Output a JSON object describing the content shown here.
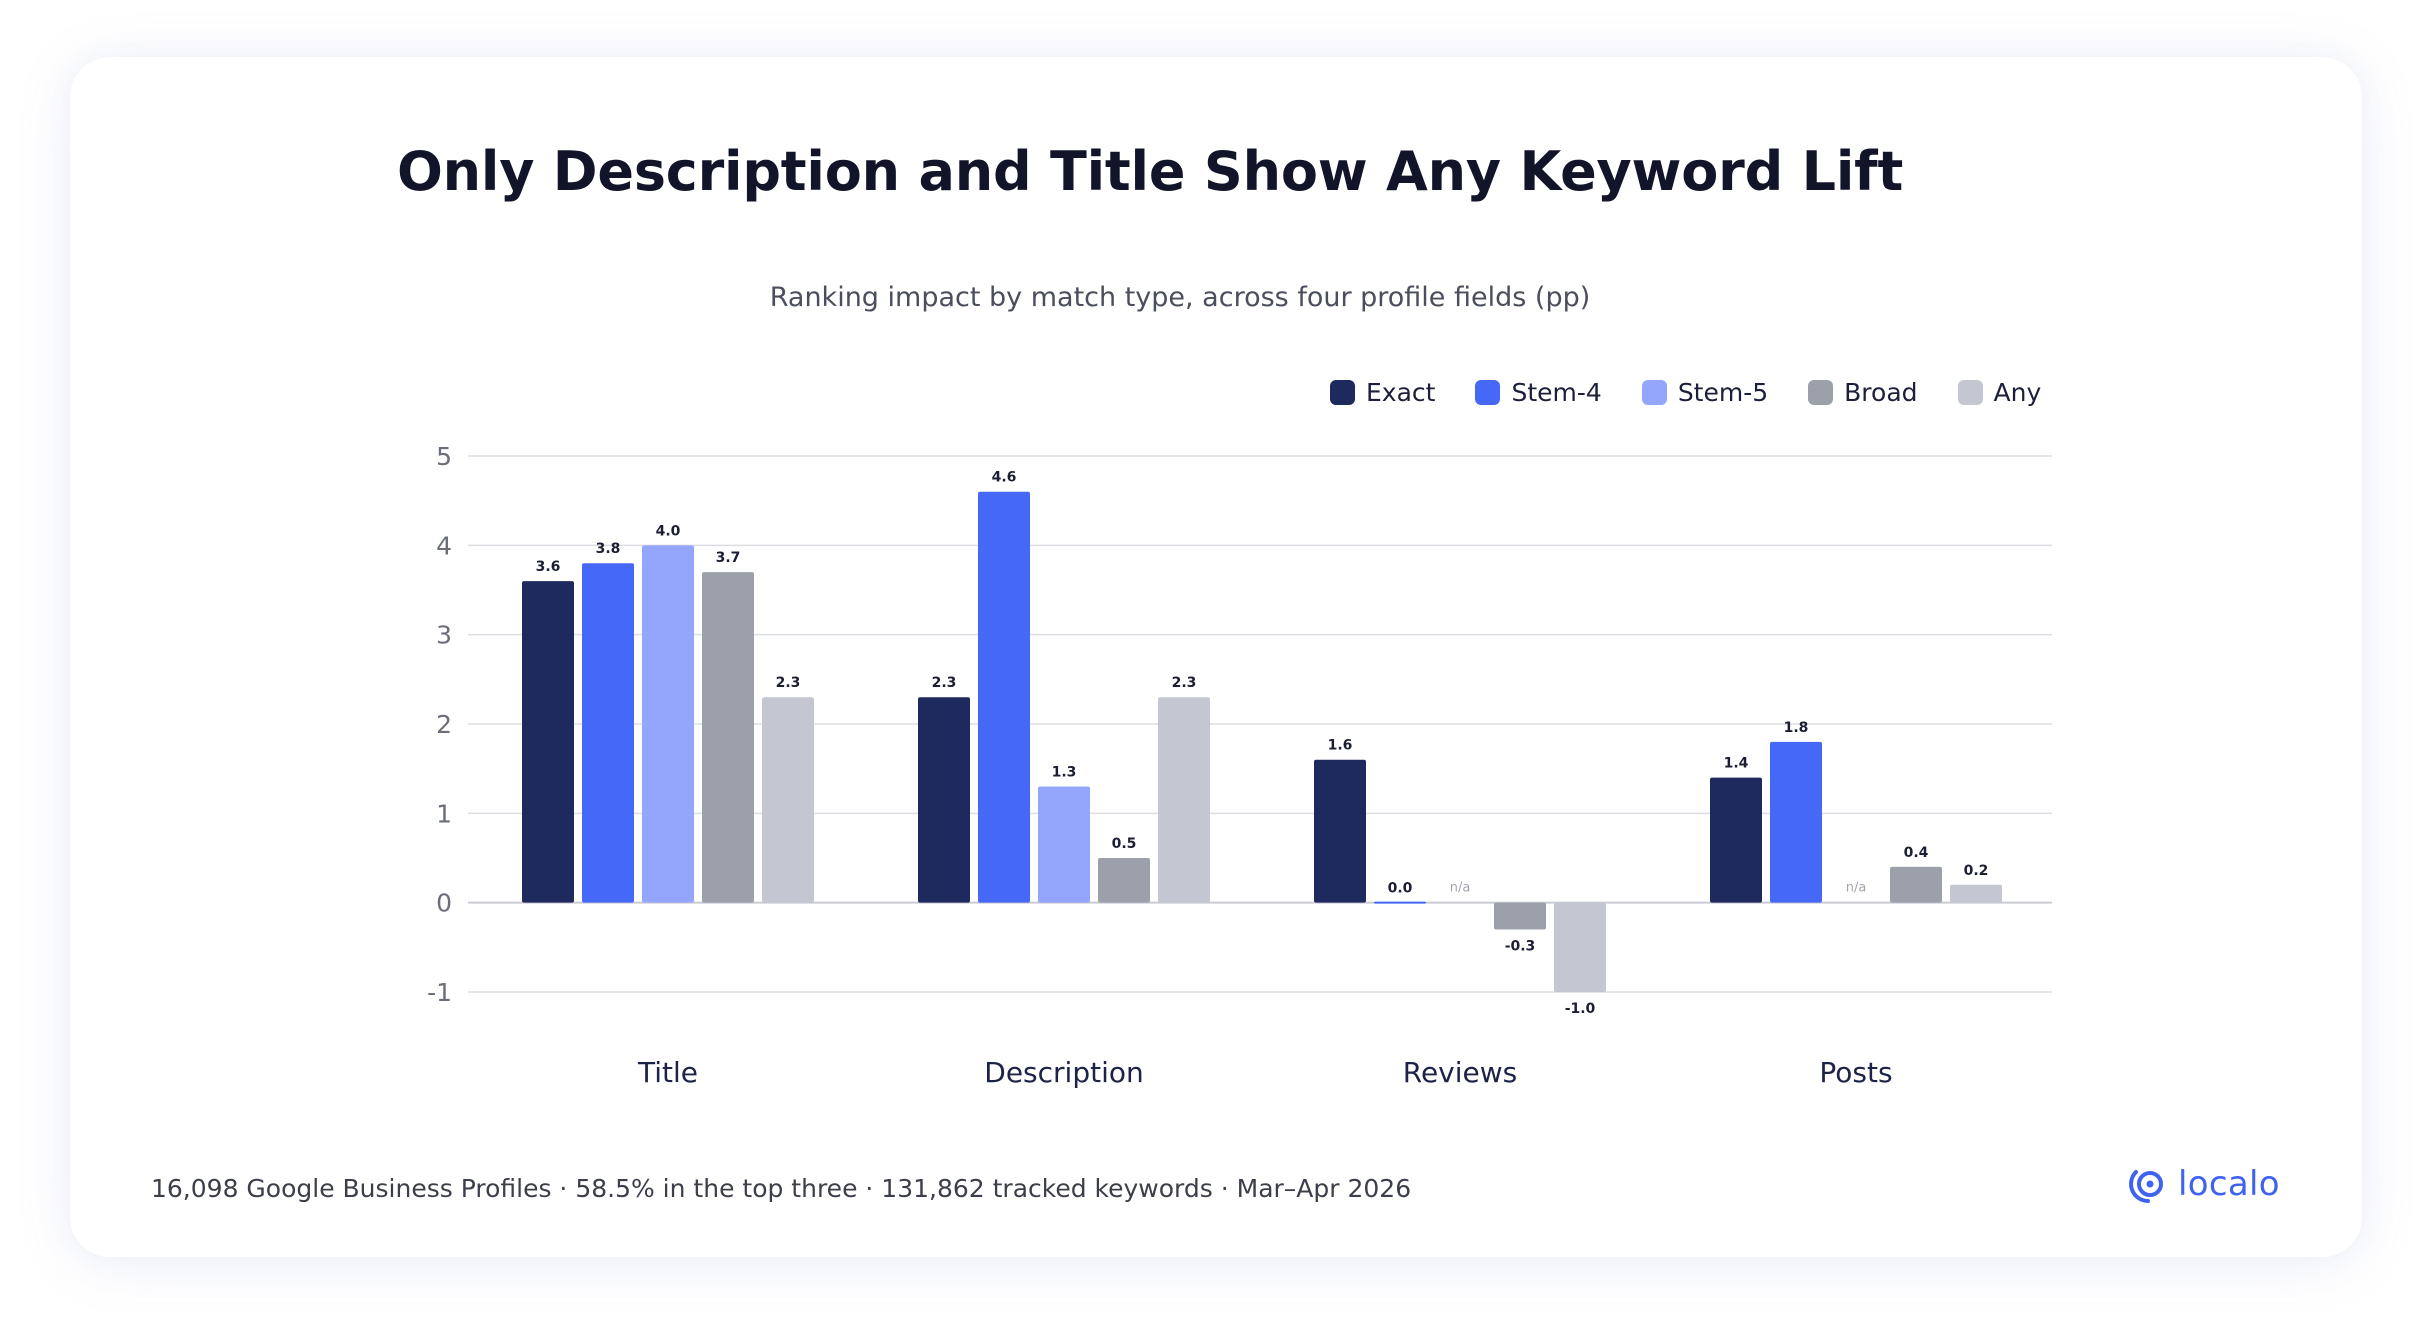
{
  "chart_data": {
    "type": "bar",
    "title": "Only Description and Title Show Any Keyword Lift",
    "subtitle": "Ranking impact by match type, across four profile fields (pp)",
    "categories": [
      "Title",
      "Description",
      "Reviews",
      "Posts"
    ],
    "series": [
      {
        "name": "Exact",
        "color": "#1e2a5e",
        "values": [
          3.6,
          2.3,
          1.6,
          1.4
        ],
        "labels": [
          "3.6",
          "2.3",
          "1.6",
          "1.4"
        ]
      },
      {
        "name": "Stem-4",
        "color": "#4569f6",
        "values": [
          3.8,
          4.6,
          0.0,
          1.8
        ],
        "labels": [
          "3.8",
          "4.6",
          "0.0",
          "1.8"
        ]
      },
      {
        "name": "Stem-5",
        "color": "#93a6fb",
        "values": [
          4.0,
          1.3,
          null,
          null
        ],
        "labels": [
          "4.0",
          "1.3",
          "n/a",
          "n/a"
        ]
      },
      {
        "name": "Broad",
        "color": "#9ca0ab",
        "values": [
          3.7,
          0.5,
          -0.3,
          0.4
        ],
        "labels": [
          "3.7",
          "0.5",
          "-0.3",
          "0.4"
        ]
      },
      {
        "name": "Any",
        "color": "#c4c7d1",
        "values": [
          2.3,
          2.3,
          -1.0,
          0.2
        ],
        "labels": [
          "2.3",
          "2.3",
          "-1.0",
          "0.2"
        ]
      }
    ],
    "yticks": [
      "5",
      "4",
      "3",
      "2",
      "1",
      "0",
      "-1"
    ],
    "ylim": [
      -1,
      5
    ],
    "grid": true,
    "legend_position": "top-right"
  },
  "footer": {
    "text": "16,098 Google Business Profiles · 58.5% in the top three · 131,862 tracked keywords · Mar–Apr 2026"
  },
  "brand": {
    "name": "localo",
    "color": "#3f63f0"
  },
  "colors": {
    "title": "#12142a",
    "axis_text": "#6b6e78",
    "category_text": "#1c2347",
    "grid": "#dcdde3"
  }
}
